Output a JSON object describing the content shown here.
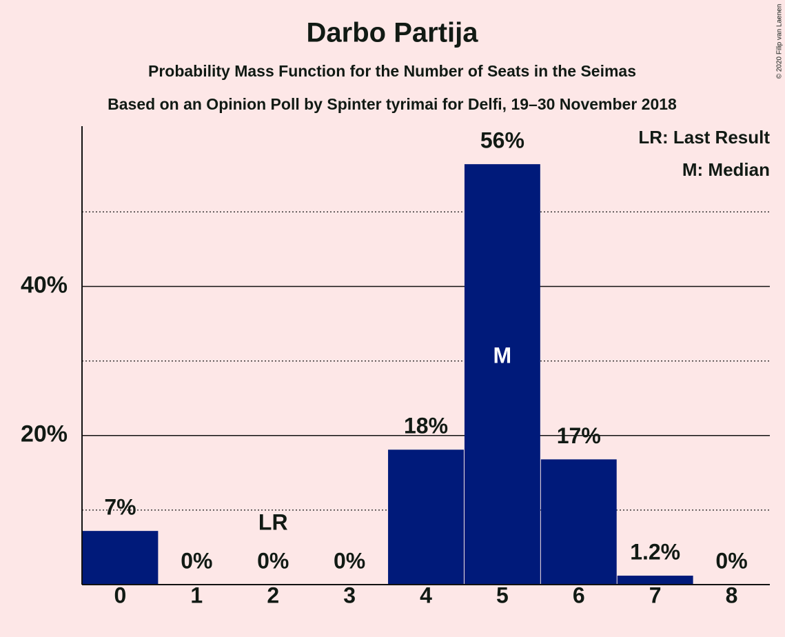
{
  "chart_data": {
    "type": "bar",
    "title": "Darbo Partija",
    "subtitle": "Probability Mass Function for the Number of Seats in the Seimas",
    "subtitle2": "Based on an Opinion Poll by Spinter tyrimai for Delfi, 19–30 November 2018",
    "copyright": "© 2020 Filip van Laenen",
    "categories": [
      0,
      1,
      2,
      3,
      4,
      5,
      6,
      7,
      8
    ],
    "values": [
      7.2,
      0,
      0,
      0,
      18.1,
      56.4,
      16.8,
      1.2,
      0
    ],
    "value_labels": [
      "7%",
      "0%",
      "0%",
      "0%",
      "18%",
      "56%",
      "17%",
      "1.2%",
      "0%"
    ],
    "color": "#001a7a",
    "ylim": [
      0,
      61.5
    ],
    "yticks": [
      {
        "value": 20,
        "label": "20%"
      },
      {
        "value": 40,
        "label": "40%"
      }
    ],
    "minor_grid": [
      10,
      30,
      50
    ],
    "grid": true,
    "markers": [
      {
        "category": 2,
        "label": "LR"
      },
      {
        "category": 5,
        "label": "M"
      }
    ],
    "legend_notes": [
      "LR: Last Result",
      "M: Median"
    ],
    "legend_position": "upper right"
  }
}
